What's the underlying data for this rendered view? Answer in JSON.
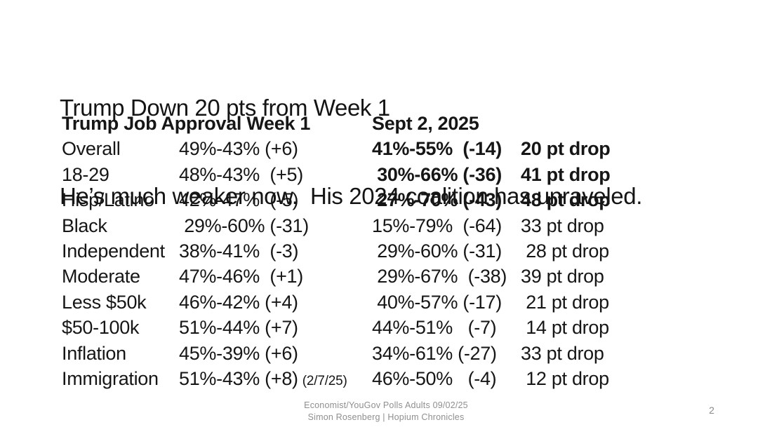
{
  "slide": {
    "title_line1": "Trump Down 20 pts from Week 1",
    "title_line2": "He’s much weaker now.  His 2024 coalition has unraveled."
  },
  "table": {
    "col1_header": "Trump Job Approval Week 1",
    "col2_header": "Sept 2, 2025",
    "rows": [
      {
        "label": "Overall",
        "week1": "49%-43% (+6)",
        "note": "",
        "sept2": "41%-55%  (-14)",
        "drop": "20 pt drop",
        "bold": true
      },
      {
        "label": "18-29",
        "week1": "48%-43%  (+5)",
        "note": "",
        "sept2": " 30%-66% (-36)",
        "drop": "41 pt drop",
        "bold": true
      },
      {
        "label": "Hisp/Latino",
        "week1": "42%-47%  (-5)",
        "note": "",
        "sept2": " 27%-70% (-43)",
        "drop": "48 pt drop",
        "bold": true
      },
      {
        "label": "Black",
        "week1": " 29%-60% (-31)",
        "note": "",
        "sept2": "15%-79%  (-64)",
        "drop": "33 pt drop",
        "bold": false
      },
      {
        "label": "Independent",
        "week1": "38%-41%  (-3)",
        "note": "",
        "sept2": " 29%-60% (-31)",
        "drop": " 28 pt drop",
        "bold": false
      },
      {
        "label": "Moderate",
        "week1": "47%-46%  (+1)",
        "note": "",
        "sept2": " 29%-67%  (-38)",
        "drop": "39 pt drop",
        "bold": false
      },
      {
        "label": "Less $50k",
        "week1": "46%-42% (+4)",
        "note": "",
        "sept2": " 40%-57% (-17)",
        "drop": " 21 pt drop",
        "bold": false
      },
      {
        "label": "$50-100k",
        "week1": "51%-44% (+7)",
        "note": "",
        "sept2": "44%-51%   (-7)",
        "drop": " 14 pt drop",
        "bold": false
      },
      {
        "label": "Inflation",
        "week1": "45%-39% (+6)",
        "note": "",
        "sept2": "34%-61% (-27)",
        "drop": "33 pt drop",
        "bold": false
      },
      {
        "label": "Immigration",
        "week1": "51%-43% (+8)",
        "note": "(2/7/25)",
        "sept2": "46%-50%   (-4)",
        "drop": " 12 pt drop",
        "bold": false
      }
    ]
  },
  "footer": {
    "line1": "Economist/YouGov Polls Adults 09/02/25",
    "line2": "Simon Rosenberg | Hopium Chronicles"
  },
  "page_number": "2",
  "colors": {
    "text": "#161616",
    "muted_gray": "#8f8f8f",
    "background": "#ffffff"
  }
}
